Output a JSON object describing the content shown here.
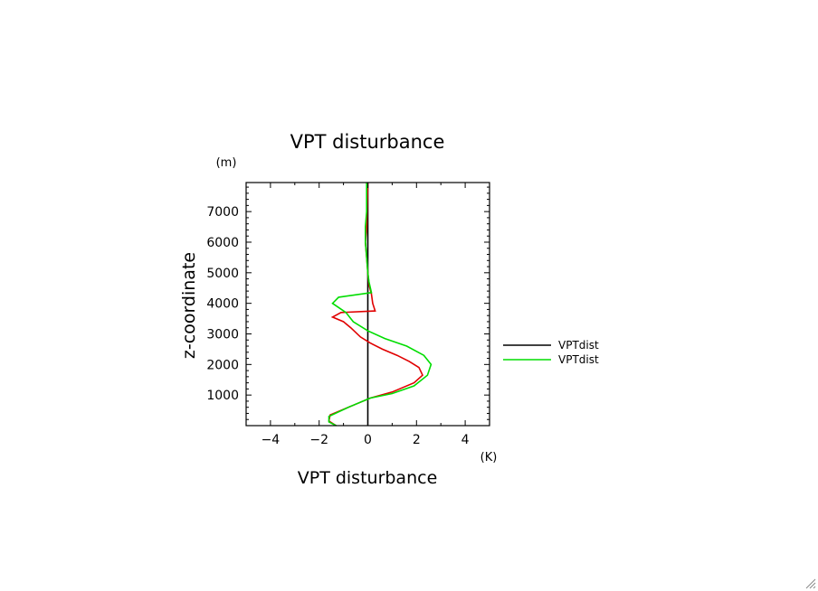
{
  "chart_data": {
    "type": "line",
    "title": "VPT disturbance",
    "xlabel": "VPT disturbance",
    "ylabel": "z-coordinate",
    "x_unit": "(K)",
    "y_unit": "(m)",
    "xlim": [
      -5,
      5
    ],
    "ylim": [
      0,
      7950
    ],
    "xticks": [
      -4,
      -2,
      0,
      2,
      4
    ],
    "yticks": [
      1000,
      2000,
      3000,
      4000,
      5000,
      6000,
      7000
    ],
    "grid": false,
    "legend_position": "right",
    "series": [
      {
        "name": "VPTdist",
        "color": "#000000",
        "points": [
          [
            0.0,
            0
          ],
          [
            0.0,
            7950
          ]
        ]
      },
      {
        "name": "",
        "color": "#e00000",
        "points": [
          [
            -1.3,
            0
          ],
          [
            -1.6,
            150
          ],
          [
            -1.55,
            350
          ],
          [
            -0.5,
            700
          ],
          [
            0.1,
            900
          ],
          [
            1.0,
            1100
          ],
          [
            1.9,
            1400
          ],
          [
            2.25,
            1650
          ],
          [
            2.1,
            1900
          ],
          [
            1.7,
            2100
          ],
          [
            1.2,
            2300
          ],
          [
            0.6,
            2500
          ],
          [
            0.1,
            2700
          ],
          [
            -0.3,
            2900
          ],
          [
            -0.7,
            3200
          ],
          [
            -1.0,
            3400
          ],
          [
            -1.45,
            3550
          ],
          [
            -1.1,
            3700
          ],
          [
            0.3,
            3750
          ],
          [
            0.2,
            4000
          ],
          [
            0.15,
            4300
          ],
          [
            0.05,
            4600
          ],
          [
            0.0,
            5000
          ],
          [
            -0.05,
            5500
          ],
          [
            -0.1,
            6000
          ],
          [
            -0.05,
            6500
          ],
          [
            0.0,
            7950
          ]
        ]
      },
      {
        "name": "VPTdist",
        "color": "#00dd00",
        "points": [
          [
            -1.3,
            0
          ],
          [
            -1.6,
            120
          ],
          [
            -1.6,
            300
          ],
          [
            -0.8,
            600
          ],
          [
            0.1,
            900
          ],
          [
            1.0,
            1050
          ],
          [
            1.9,
            1300
          ],
          [
            2.45,
            1650
          ],
          [
            2.6,
            2000
          ],
          [
            2.3,
            2300
          ],
          [
            1.6,
            2600
          ],
          [
            0.7,
            2850
          ],
          [
            0.0,
            3100
          ],
          [
            -0.6,
            3400
          ],
          [
            -0.9,
            3700
          ],
          [
            -1.45,
            4000
          ],
          [
            -1.2,
            4200
          ],
          [
            0.15,
            4350
          ],
          [
            0.05,
            4700
          ],
          [
            0.0,
            5000
          ],
          [
            -0.05,
            5500
          ],
          [
            -0.1,
            6000
          ],
          [
            -0.1,
            6500
          ],
          [
            -0.05,
            7000
          ],
          [
            -0.05,
            7500
          ],
          [
            -0.05,
            7950
          ]
        ]
      }
    ]
  }
}
